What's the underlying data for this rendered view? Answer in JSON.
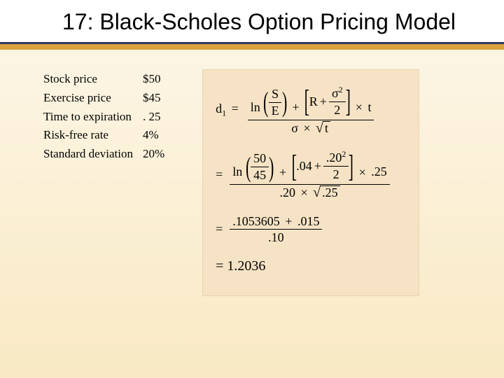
{
  "slide": {
    "title": "17: Black-Scholes Option Pricing Model",
    "header_bg": "#ffffff",
    "rule_dark_color": "#2b3a67",
    "rule_gold_color": "#d8a13a",
    "background_gradient": [
      "#fdf7e9",
      "#f9e9c4"
    ]
  },
  "params": {
    "rows": [
      {
        "label": "Stock price",
        "value": "$50"
      },
      {
        "label": "Exercise price",
        "value": "$45"
      },
      {
        "label": "Time to expiration",
        "value": ". 25"
      },
      {
        "label": "Risk-free rate",
        "value": "4%"
      },
      {
        "label": "Standard deviation",
        "value": "20%"
      }
    ],
    "font_size_pt": 13
  },
  "formula": {
    "box_bg": "#f6e3c5",
    "box_border": "#e6d4b0",
    "font_family": "Times New Roman",
    "eq1": {
      "lhs": "d",
      "lhs_sub": "1",
      "num_left_ln": "ln",
      "frac_SE_num": "S",
      "frac_SE_den": "E",
      "plus1": "+",
      "R": "R",
      "plus2": "+",
      "sigma": "σ",
      "sigma_sup": "2",
      "two": "2",
      "times1": "×",
      "t": "t",
      "den_sigma": "σ",
      "den_times": "×",
      "den_sqrt_t": "t"
    },
    "eq2": {
      "eq": "=",
      "ln": "ln",
      "frac_num": "50",
      "frac_den": "45",
      "plus1": "+",
      "r_val": ".04",
      "plus2": "+",
      "sig_num": ".20",
      "sig_sup": "2",
      "sig_den": "2",
      "times": "×",
      "t_val": ".25",
      "den_sig": ".20",
      "den_times": "×",
      "den_sqrt_t": ".25"
    },
    "eq3": {
      "eq": "=",
      "num_a": ".1053605",
      "plus": "+",
      "num_b": ".015",
      "den": ".10"
    },
    "eq4": {
      "eq": "=",
      "val": "1.2036"
    }
  }
}
